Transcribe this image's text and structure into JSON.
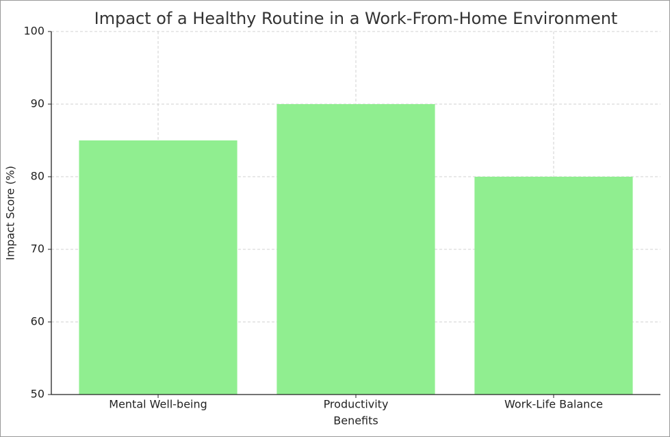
{
  "chart_data": {
    "type": "bar",
    "title": "Impact of a Healthy Routine in a Work-From-Home Environment",
    "xlabel": "Benefits",
    "ylabel": "Impact Score (%)",
    "categories": [
      "Mental Well-being",
      "Productivity",
      "Work-Life Balance"
    ],
    "values": [
      85,
      90,
      80
    ],
    "color": "#90ee90",
    "ylim": [
      50,
      100
    ],
    "yticks": [
      50,
      60,
      70,
      80,
      90,
      100
    ],
    "grid": true
  }
}
